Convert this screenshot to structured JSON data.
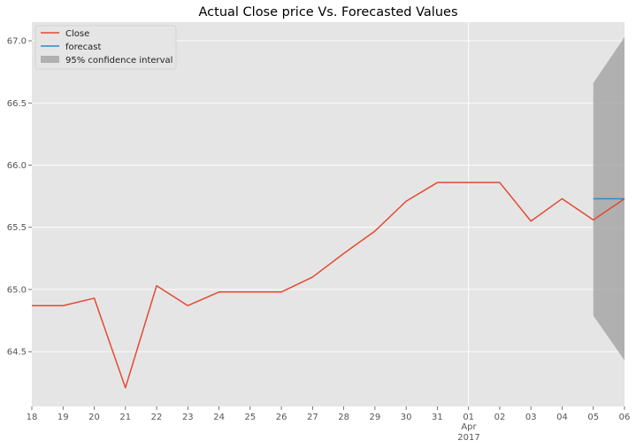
{
  "chart_data": {
    "type": "line",
    "title": "Actual Close price Vs. Forecasted Values",
    "xlabel": "",
    "ylabel": "",
    "x_tick_labels": [
      "18",
      "19",
      "20",
      "21",
      "22",
      "23",
      "24",
      "25",
      "26",
      "27",
      "28",
      "29",
      "30",
      "31",
      "01",
      "02",
      "03",
      "04",
      "05",
      "06"
    ],
    "x_sub_labels": {
      "month": "Apr",
      "year": "2017"
    },
    "y_ticks": [
      "64.5",
      "65.0",
      "65.5",
      "66.0",
      "66.5",
      "67.0"
    ],
    "y_tick_values": [
      64.5,
      65.0,
      65.5,
      66.0,
      66.5,
      67.0
    ],
    "ylim": [
      64.06,
      67.15
    ],
    "grid": true,
    "legend_position": "upper-left",
    "series": [
      {
        "name": "Close",
        "color": "#E24A33",
        "values": [
          64.87,
          64.87,
          64.93,
          64.21,
          65.03,
          64.87,
          64.98,
          64.98,
          64.98,
          65.1,
          65.29,
          65.47,
          65.71,
          65.86,
          65.86,
          65.86,
          65.55,
          65.73,
          65.56,
          65.73
        ]
      },
      {
        "name": "forecast",
        "color": "#348ABD",
        "x_index": [
          18,
          19
        ],
        "values": [
          65.73,
          65.73
        ]
      }
    ],
    "confidence_interval": {
      "name": "95% confidence interval",
      "color": "#9e9e9e",
      "x_index": [
        18,
        19
      ],
      "lower": [
        64.79,
        64.43
      ],
      "upper": [
        66.66,
        67.03
      ]
    }
  }
}
